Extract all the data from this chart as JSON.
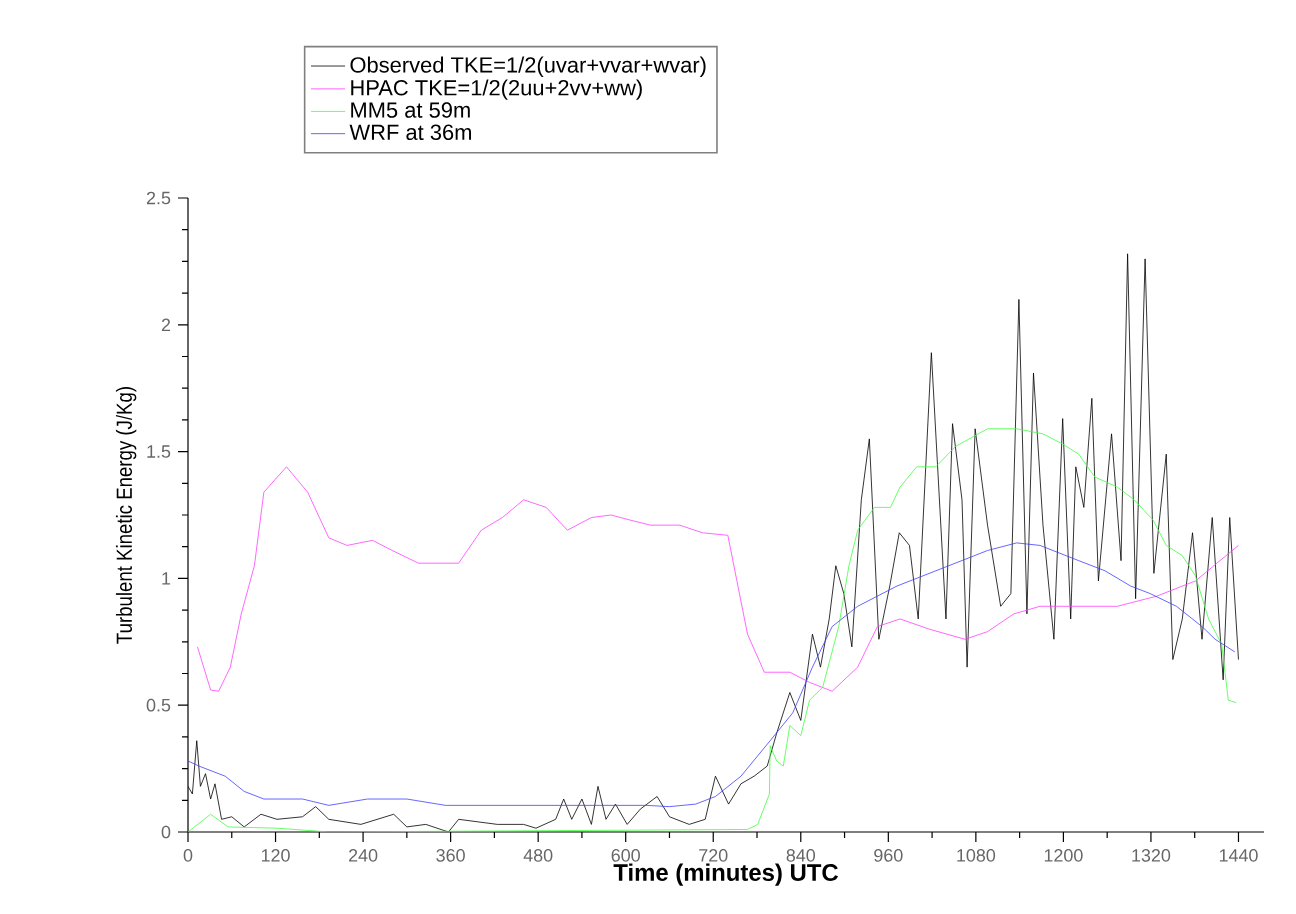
{
  "chart_data": {
    "type": "line",
    "xlabel": "Time (minutes) UTC",
    "ylabel": "Turbulent Kinetic Energy (J/Kg)",
    "xlim": [
      0,
      1475
    ],
    "ylim": [
      0,
      2.5
    ],
    "xticks": [
      0,
      120,
      240,
      360,
      480,
      600,
      720,
      840,
      960,
      1080,
      1200,
      1320,
      1440
    ],
    "yticks": [
      0,
      0.5,
      1,
      1.5,
      2,
      2.5
    ],
    "legend": "top",
    "grid": false,
    "marker": "none",
    "line_style": "solid",
    "series": [
      {
        "name": "Observed TKE=1/2(uvar+vvar+wvar)",
        "color": "#000000",
        "x": [
          0,
          6,
          12,
          17,
          24,
          31,
          37,
          46,
          60,
          77,
          100,
          122,
          157,
          175,
          193,
          237,
          282,
          300,
          326,
          357,
          371,
          424,
          460,
          477,
          504,
          515,
          526,
          540,
          553,
          562,
          573,
          586,
          602,
          620,
          643,
          660,
          687,
          709,
          723,
          741,
          758,
          776,
          794,
          807,
          825,
          840,
          856,
          867,
          879,
          888,
          899,
          910,
          923,
          934,
          947,
          962,
          975,
          989,
          1001,
          1019,
          1039,
          1048,
          1061,
          1068,
          1079,
          1096,
          1114,
          1128,
          1139,
          1150,
          1159,
          1172,
          1187,
          1199,
          1210,
          1217,
          1228,
          1239,
          1248,
          1266,
          1279,
          1288,
          1299,
          1312,
          1324,
          1341,
          1350,
          1363,
          1377,
          1390,
          1404,
          1419,
          1428,
          1440
        ],
        "values": [
          0.18,
          0.15,
          0.36,
          0.18,
          0.23,
          0.13,
          0.19,
          0.05,
          0.06,
          0.02,
          0.07,
          0.05,
          0.06,
          0.1,
          0.05,
          0.03,
          0.07,
          0.02,
          0.03,
          0.0,
          0.05,
          0.03,
          0.03,
          0.015,
          0.05,
          0.13,
          0.05,
          0.13,
          0.03,
          0.18,
          0.05,
          0.11,
          0.03,
          0.09,
          0.14,
          0.06,
          0.03,
          0.05,
          0.22,
          0.11,
          0.19,
          0.22,
          0.26,
          0.39,
          0.55,
          0.44,
          0.78,
          0.65,
          0.84,
          1.05,
          0.94,
          0.73,
          1.31,
          1.55,
          0.76,
          0.97,
          1.18,
          1.13,
          0.84,
          1.89,
          0.84,
          1.61,
          1.31,
          0.65,
          1.59,
          1.21,
          0.89,
          0.94,
          2.1,
          0.86,
          1.81,
          1.21,
          0.76,
          1.63,
          0.84,
          1.44,
          1.28,
          1.71,
          0.99,
          1.57,
          1.07,
          2.28,
          0.92,
          2.26,
          1.02,
          1.49,
          0.68,
          0.84,
          1.18,
          0.76,
          1.24,
          0.6,
          1.24,
          0.68
        ]
      },
      {
        "name": "HPAC TKE=1/2(2uu+2vv+ww)",
        "color": "#ff40ff",
        "x": [
          13,
          31,
          42,
          58,
          73,
          91,
          104,
          135,
          164,
          193,
          218,
          253,
          280,
          316,
          371,
          402,
          431,
          460,
          491,
          520,
          553,
          580,
          606,
          634,
          674,
          705,
          740,
          767,
          790,
          825,
          852,
          883,
          918,
          945,
          976,
          1016,
          1065,
          1096,
          1132,
          1168,
          1274,
          1328,
          1381,
          1440
        ],
        "values": [
          0.73,
          0.56,
          0.555,
          0.65,
          0.86,
          1.05,
          1.34,
          1.44,
          1.34,
          1.16,
          1.13,
          1.15,
          1.11,
          1.06,
          1.06,
          1.19,
          1.24,
          1.31,
          1.28,
          1.19,
          1.24,
          1.25,
          1.23,
          1.21,
          1.21,
          1.18,
          1.17,
          0.78,
          0.63,
          0.63,
          0.59,
          0.555,
          0.65,
          0.81,
          0.84,
          0.8,
          0.76,
          0.79,
          0.86,
          0.89,
          0.89,
          0.93,
          0.99,
          1.13
        ]
      },
      {
        "name": "MM5 at 59m",
        "color": "#40ff40",
        "x": [
          0,
          31,
          55,
          122,
          193,
          767,
          781,
          797,
          798,
          807,
          816,
          825,
          840,
          852,
          870,
          892,
          906,
          918,
          941,
          963,
          976,
          999,
          1025,
          1052,
          1096,
          1136,
          1172,
          1199,
          1221,
          1243,
          1274,
          1297,
          1323,
          1341,
          1363,
          1381,
          1399,
          1417,
          1426,
          1437
        ],
        "values": [
          0,
          0.07,
          0.02,
          0.015,
          0,
          0.01,
          0.03,
          0.15,
          0.34,
          0.28,
          0.26,
          0.42,
          0.38,
          0.52,
          0.57,
          0.81,
          1.05,
          1.19,
          1.28,
          1.28,
          1.36,
          1.44,
          1.44,
          1.52,
          1.59,
          1.59,
          1.57,
          1.53,
          1.49,
          1.4,
          1.36,
          1.31,
          1.23,
          1.13,
          1.09,
          1.01,
          0.84,
          0.74,
          0.52,
          0.51
        ]
      },
      {
        "name": "WRF at 36m",
        "color": "#4040ff",
        "x": [
          0,
          15,
          51,
          77,
          104,
          157,
          193,
          246,
          300,
          353,
          460,
          628,
          660,
          696,
          723,
          758,
          798,
          829,
          856,
          883,
          918,
          972,
          1034,
          1096,
          1136,
          1168,
          1221,
          1257,
          1292,
          1319,
          1355,
          1390,
          1408,
          1435
        ],
        "values": [
          0.28,
          0.26,
          0.22,
          0.16,
          0.13,
          0.13,
          0.105,
          0.13,
          0.13,
          0.105,
          0.105,
          0.105,
          0.1,
          0.11,
          0.14,
          0.22,
          0.36,
          0.47,
          0.65,
          0.81,
          0.89,
          0.97,
          1.04,
          1.11,
          1.14,
          1.13,
          1.07,
          1.03,
          0.97,
          0.94,
          0.89,
          0.81,
          0.76,
          0.71
        ]
      }
    ]
  }
}
